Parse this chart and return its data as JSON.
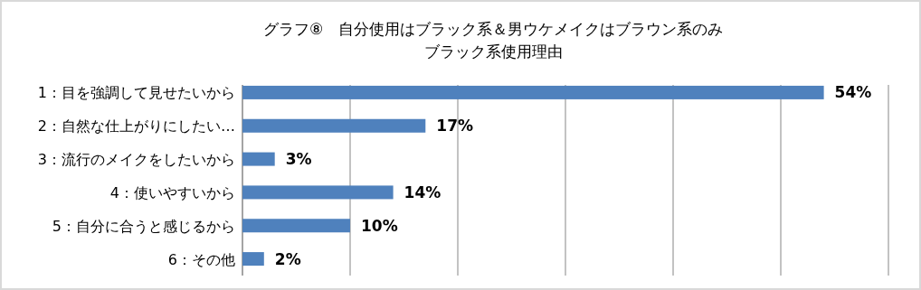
{
  "chart_data": {
    "type": "bar",
    "orientation": "horizontal",
    "title": "グラフ⑧　自分使用はブラック系＆男ウケメイクはブラウン系のみ",
    "subtitle": "ブラック系使用理由",
    "categories": [
      "1：目を強調して見せたいから",
      "2：自然な仕上がりにしたい…",
      "3：流行のメイクをしたいから",
      "4：使いやすいから",
      "5：自分に合うと感じるから",
      "6：その他"
    ],
    "values": [
      54,
      17,
      3,
      14,
      10,
      2
    ],
    "value_labels": [
      "54%",
      "17%",
      "3%",
      "14%",
      "10%",
      "2%"
    ],
    "color": "#4f81bd",
    "xlim": [
      0,
      60
    ],
    "xticks": [
      {
        "value": 0,
        "label": null
      },
      {
        "value": 10,
        "label": null
      },
      {
        "value": 20,
        "label": null
      },
      {
        "value": 30,
        "label": null
      },
      {
        "value": 40,
        "label": null
      },
      {
        "value": 50,
        "label": null
      },
      {
        "value": 60,
        "label": null
      }
    ],
    "grid": "x",
    "tick_labels": "y"
  }
}
